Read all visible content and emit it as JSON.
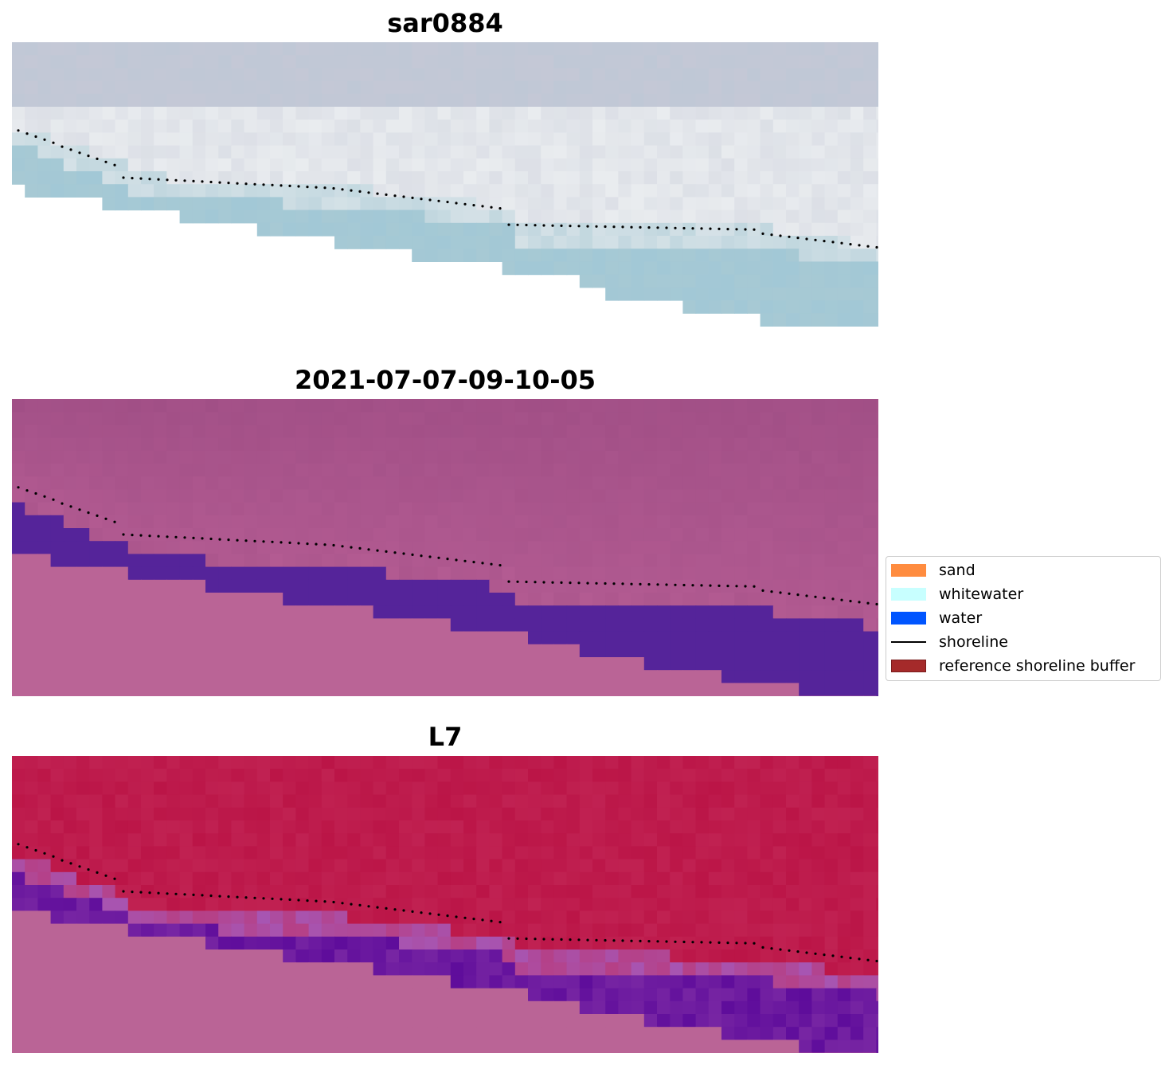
{
  "panels": [
    {
      "title": "sar0884",
      "style": "rgb",
      "colors": {
        "top": "#c4c8d6",
        "mid": "#e9ecef",
        "lower": "#b8c9d6",
        "water": "#a7c9d4",
        "blue": "#9cc7d8"
      }
    },
    {
      "title": "2021-07-07-09-10-05",
      "style": "classified",
      "colors": {
        "top": "#a14f86",
        "mid": "#b35b92",
        "land": "#ba6496",
        "water": "#55249a",
        "nodata": "#ba6496"
      }
    },
    {
      "title": "L7",
      "style": "nir",
      "colors": {
        "top": "#bb1547",
        "mid": "#c42a59",
        "land": "#ba6496",
        "water": "#5e0c9b",
        "edge": "#a755b2"
      }
    }
  ],
  "legend": {
    "items": [
      {
        "label": "sand",
        "type": "patch",
        "color": "#ff8c3f",
        "edge": "#ff8c3f"
      },
      {
        "label": "whitewater",
        "type": "patch",
        "color": "#c8ffff",
        "edge": "#c8ffff"
      },
      {
        "label": "water",
        "type": "patch",
        "color": "#0055ff",
        "edge": "#0055ff"
      },
      {
        "label": "shoreline",
        "type": "line",
        "color": "#000000"
      },
      {
        "label": "reference shoreline buffer",
        "type": "patch",
        "color": "#a52a2a",
        "edge": "#7a1d1d"
      }
    ]
  }
}
